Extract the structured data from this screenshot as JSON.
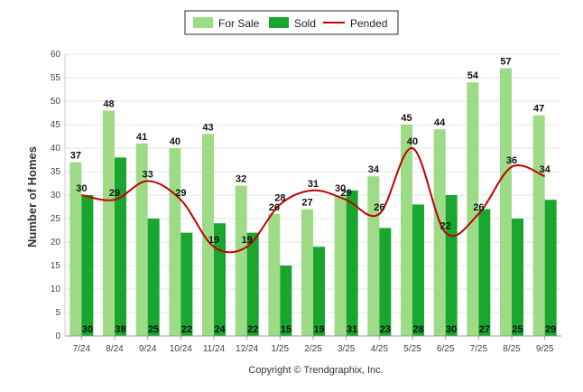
{
  "chart_data": {
    "type": "bar",
    "title": "",
    "xlabel": "",
    "ylabel": "Number of Homes",
    "ylim": [
      0,
      60
    ],
    "yticks": [
      0,
      5,
      10,
      15,
      20,
      25,
      30,
      35,
      40,
      45,
      50,
      55,
      60
    ],
    "categories": [
      "7/24",
      "8/24",
      "9/24",
      "10/24",
      "11/24",
      "12/24",
      "1/25",
      "2/25",
      "3/25",
      "4/25",
      "5/25",
      "6/25",
      "7/25",
      "8/25",
      "9/25"
    ],
    "series": [
      {
        "name": "For Sale",
        "kind": "bar",
        "color": "#9edb86",
        "values": [
          37,
          48,
          41,
          40,
          43,
          32,
          26,
          27,
          30,
          34,
          45,
          44,
          54,
          57,
          47
        ]
      },
      {
        "name": "Sold",
        "kind": "bar",
        "color": "#18a62e",
        "values": [
          30,
          38,
          25,
          22,
          24,
          22,
          15,
          19,
          31,
          23,
          28,
          30,
          27,
          25,
          29
        ]
      },
      {
        "name": "Pended",
        "kind": "line",
        "color": "#c00000",
        "values": [
          30,
          29,
          33,
          29,
          19,
          19,
          28,
          31,
          29,
          26,
          40,
          22,
          26,
          36,
          34
        ]
      }
    ],
    "legend": "top-center",
    "grid": true
  },
  "copyright": "Copyright © Trendgraphix, Inc."
}
